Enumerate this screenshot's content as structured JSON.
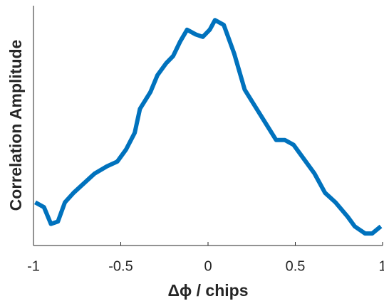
{
  "chart_data": {
    "type": "line",
    "x_label": "Δϕ / chips",
    "y_label": "Correlation Amplitude",
    "x": [
      -0.99,
      -0.94,
      -0.9,
      -0.86,
      -0.82,
      -0.77,
      -0.71,
      -0.65,
      -0.58,
      -0.52,
      -0.47,
      -0.42,
      -0.39,
      -0.33,
      -0.29,
      -0.24,
      -0.2,
      -0.16,
      -0.12,
      -0.07,
      -0.03,
      0.01,
      0.04,
      0.09,
      0.15,
      0.21,
      0.27,
      0.33,
      0.39,
      0.44,
      0.49,
      0.55,
      0.61,
      0.67,
      0.73,
      0.8,
      0.84,
      0.9,
      0.94,
      0.99
    ],
    "series": [
      {
        "color": "#0072bd",
        "values": [
          0.18,
          0.16,
          0.09,
          0.1,
          0.18,
          0.22,
          0.26,
          0.3,
          0.33,
          0.35,
          0.4,
          0.47,
          0.57,
          0.64,
          0.71,
          0.76,
          0.79,
          0.85,
          0.9,
          0.88,
          0.87,
          0.9,
          0.94,
          0.92,
          0.8,
          0.65,
          0.58,
          0.51,
          0.44,
          0.44,
          0.42,
          0.36,
          0.3,
          0.22,
          0.18,
          0.12,
          0.08,
          0.05,
          0.05,
          0.08
        ]
      }
    ],
    "xlim": [
      -1,
      1
    ],
    "ylim": [
      0,
      1
    ],
    "xticks": [
      -1,
      -0.5,
      0,
      0.5,
      1
    ]
  }
}
